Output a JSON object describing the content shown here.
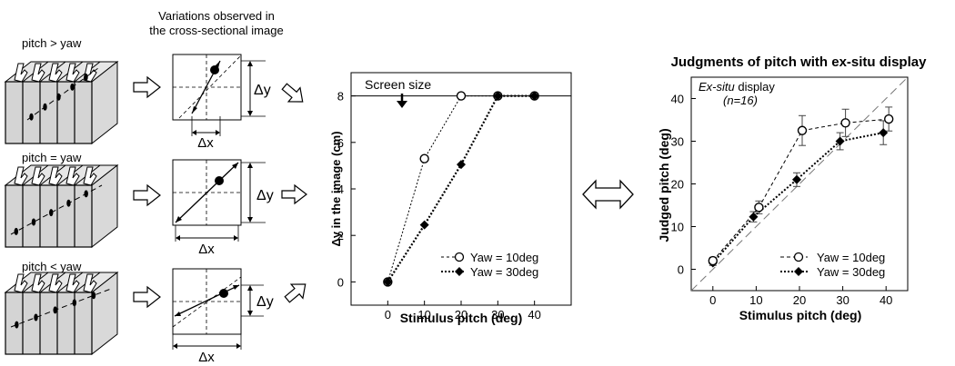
{
  "left_panel": {
    "title_line1": "Variations observed in",
    "title_line2": "the cross-sectional image",
    "cases": [
      {
        "label": "pitch > yaw"
      },
      {
        "label": "pitch  =  yaw"
      },
      {
        "label": "pitch  <  yaw"
      }
    ],
    "dx_label": "Δx",
    "dy_label": "Δy"
  },
  "chart_data": [
    {
      "type": "line",
      "title": "",
      "annotation": "Screen size",
      "xlabel": "Stimulus pitch (deg)",
      "ylabel": "Δy in the image (cm)",
      "xlim": [
        -10,
        50
      ],
      "ylim": [
        -1,
        9
      ],
      "xticks": [
        0,
        10,
        20,
        30,
        40
      ],
      "yticks": [
        0,
        2,
        4,
        6,
        8
      ],
      "reference_line": 8,
      "grid": false,
      "legend_position": "bottom-right",
      "series": [
        {
          "name": "Yaw = 10deg",
          "marker": "open-circle",
          "style": "dotted",
          "x": [
            0,
            10,
            20,
            30,
            40
          ],
          "y": [
            0,
            5.3,
            8,
            8,
            8
          ]
        },
        {
          "name": "Yaw = 30deg",
          "marker": "filled-diamond",
          "style": "dotted-bold",
          "x": [
            0,
            10,
            20,
            30,
            40
          ],
          "y": [
            0,
            2.45,
            5.05,
            8,
            8
          ]
        }
      ]
    },
    {
      "type": "line",
      "title": "Judgments of pitch with ex-situ display",
      "annotation_line1_italic": "Ex-situ",
      "annotation_line1_rest": " display",
      "annotation_line2": "(n=16)",
      "xlabel": "Stimulus pitch (deg)",
      "ylabel": "Judged pitch (deg)",
      "xlim": [
        -5,
        45
      ],
      "ylim": [
        -5,
        45
      ],
      "xticks": [
        0,
        10,
        20,
        30,
        40
      ],
      "yticks": [
        0,
        10,
        20,
        30,
        40
      ],
      "diagonal_reference": true,
      "grid": false,
      "legend_position": "bottom-right",
      "series": [
        {
          "name": "Yaw = 10deg",
          "marker": "open-circle",
          "style": "dashed",
          "x": [
            0,
            10,
            20,
            30,
            40
          ],
          "y": [
            2,
            14.5,
            32.5,
            34.3,
            35.2
          ],
          "err": [
            0.8,
            1.5,
            3.5,
            3.2,
            2.8
          ]
        },
        {
          "name": "Yaw = 30deg",
          "marker": "filled-diamond",
          "style": "dotted",
          "x": [
            0,
            10,
            20,
            30,
            40
          ],
          "y": [
            1.5,
            12.3,
            21,
            30,
            32
          ],
          "err": [
            0.6,
            1.2,
            1.6,
            2.0,
            2.8
          ]
        }
      ]
    }
  ]
}
